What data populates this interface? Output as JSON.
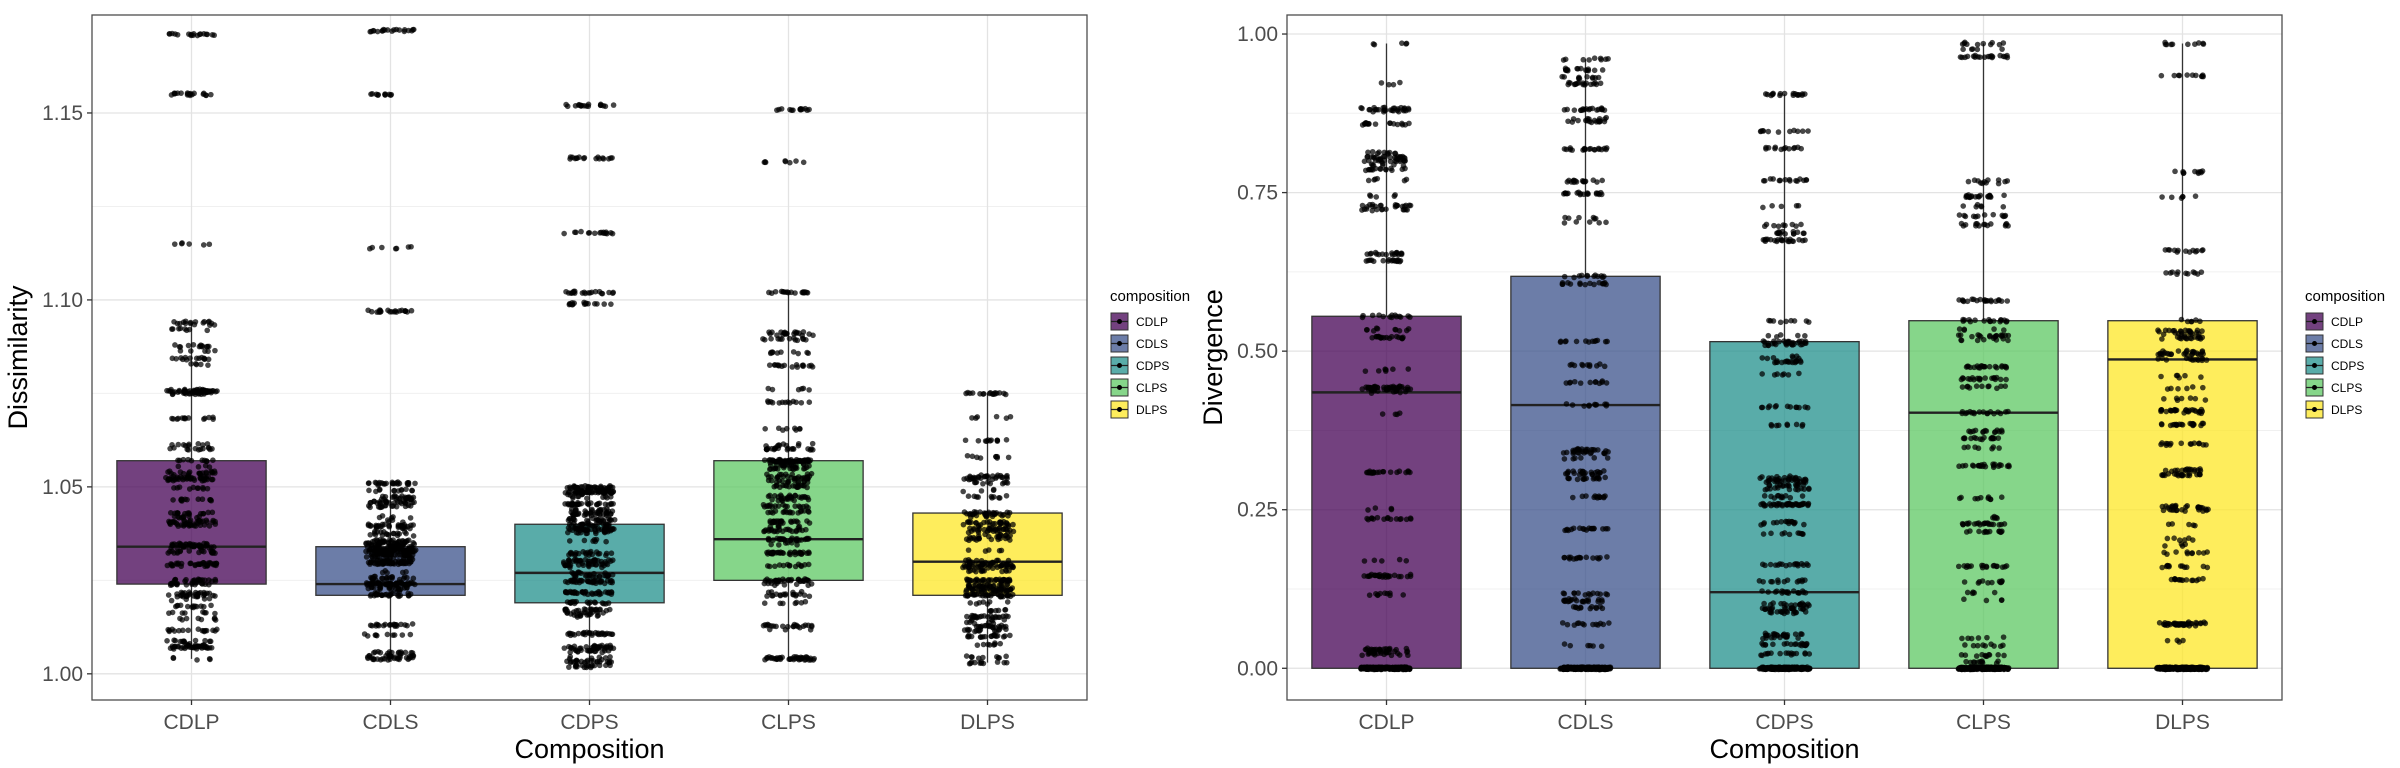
{
  "chart_data": [
    {
      "type": "box",
      "title": "",
      "xlabel": "Composition",
      "ylabel": "Dissimilarity",
      "ylim": [
        0.993,
        1.1762
      ],
      "yticks": [
        1.0,
        1.05,
        1.1,
        1.15
      ],
      "ytick_labels": [
        "1.00",
        "1.05",
        "1.10",
        "1.15"
      ],
      "grid": true,
      "legend": {
        "title": "composition",
        "placement": "right"
      },
      "categories": [
        "CDLP",
        "CDLS",
        "CDPS",
        "CLPS",
        "DLPS"
      ],
      "colors": [
        "#440154",
        "#3b528b",
        "#21908c",
        "#5dc863",
        "#fde725"
      ],
      "boxes": [
        {
          "name": "CDLP",
          "whisker_low": 1.004,
          "q1": 1.024,
          "median": 1.034,
          "q3": 1.057,
          "whisker_high": 1.094,
          "outliers": [
            1.115,
            1.155,
            1.171
          ]
        },
        {
          "name": "CDLS",
          "whisker_low": 1.004,
          "q1": 1.021,
          "median": 1.024,
          "q3": 1.034,
          "whisker_high": 1.051,
          "outliers": [
            1.097,
            1.114,
            1.155,
            1.172
          ]
        },
        {
          "name": "CDPS",
          "whisker_low": 1.002,
          "q1": 1.019,
          "median": 1.027,
          "q3": 1.04,
          "whisker_high": 1.05,
          "outliers": [
            1.099,
            1.102,
            1.118,
            1.138,
            1.152
          ]
        },
        {
          "name": "CLPS",
          "whisker_low": 1.004,
          "q1": 1.025,
          "median": 1.036,
          "q3": 1.057,
          "whisker_high": 1.102,
          "outliers": [
            1.137,
            1.151
          ]
        },
        {
          "name": "DLPS",
          "whisker_low": 1.003,
          "q1": 1.021,
          "median": 1.03,
          "q3": 1.043,
          "whisker_high": 1.075,
          "outliers": []
        }
      ]
    },
    {
      "type": "box",
      "title": "",
      "xlabel": "Composition",
      "ylabel": "Divergence",
      "ylim": [
        -0.05,
        1.03
      ],
      "yticks": [
        0.0,
        0.25,
        0.5,
        0.75,
        1.0
      ],
      "ytick_labels": [
        "0.00",
        "0.25",
        "0.50",
        "0.75",
        "1.00"
      ],
      "grid": true,
      "legend": {
        "title": "composition",
        "placement": "right"
      },
      "categories": [
        "CDLP",
        "CDLS",
        "CDPS",
        "CLPS",
        "DLPS"
      ],
      "colors": [
        "#440154",
        "#3b528b",
        "#21908c",
        "#5dc863",
        "#fde725"
      ],
      "boxes": [
        {
          "name": "CDLP",
          "whisker_low": 0.0,
          "q1": 0.0,
          "median": 0.435,
          "q3": 0.555,
          "whisker_high": 0.985,
          "outliers": []
        },
        {
          "name": "CDLS",
          "whisker_low": 0.0,
          "q1": 0.0,
          "median": 0.415,
          "q3": 0.618,
          "whisker_high": 0.96,
          "outliers": []
        },
        {
          "name": "CDPS",
          "whisker_low": 0.0,
          "q1": 0.0,
          "median": 0.12,
          "q3": 0.515,
          "whisker_high": 0.905,
          "outliers": []
        },
        {
          "name": "CLPS",
          "whisker_low": 0.0,
          "q1": 0.0,
          "median": 0.403,
          "q3": 0.548,
          "whisker_high": 0.985,
          "outliers": []
        },
        {
          "name": "DLPS",
          "whisker_low": 0.0,
          "q1": 0.0,
          "median": 0.487,
          "q3": 0.548,
          "whisker_high": 0.985,
          "outliers": []
        }
      ]
    }
  ]
}
